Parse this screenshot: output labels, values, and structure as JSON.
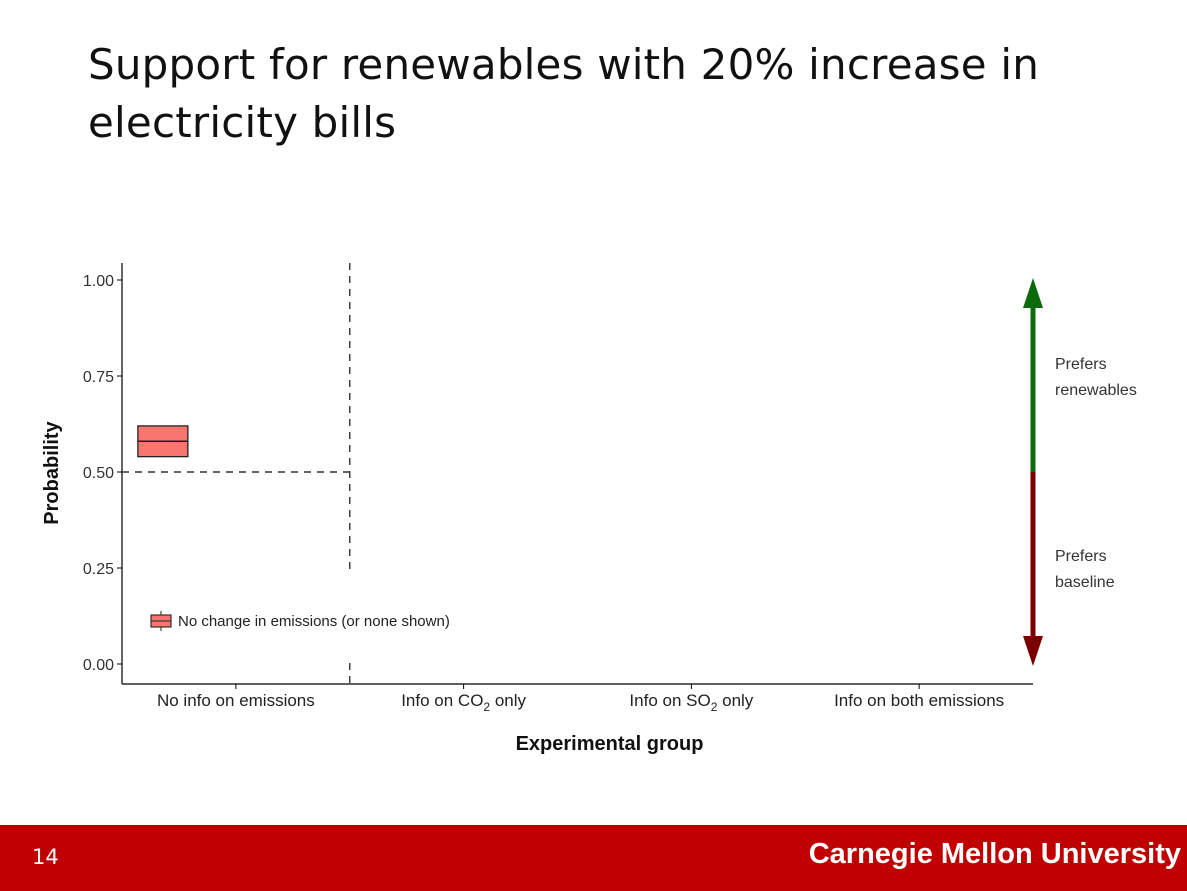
{
  "slide": {
    "title": "Support for renewables with 20% increase in electricity bills",
    "page_number": "14",
    "university": "Carnegie Mellon University"
  },
  "chart_data": {
    "type": "box",
    "title": "",
    "xlabel": "Experimental group",
    "ylabel": "Probability",
    "ylim": [
      0,
      1
    ],
    "yticks": [
      {
        "value": 0.0,
        "label": "0.00"
      },
      {
        "value": 0.25,
        "label": "0.25"
      },
      {
        "value": 0.5,
        "label": "0.50"
      },
      {
        "value": 0.75,
        "label": "0.75"
      },
      {
        "value": 1.0,
        "label": "1.00"
      }
    ],
    "categories": [
      {
        "pre": "No info on emissions",
        "sub": "",
        "post": ""
      },
      {
        "pre": "Info on CO",
        "sub": "2",
        "post": " only"
      },
      {
        "pre": "Info on SO",
        "sub": "2",
        "post": " only"
      },
      {
        "pre": "Info on both emissions",
        "sub": "",
        "post": ""
      }
    ],
    "series": [
      {
        "name": "No change in emissions (or none shown)",
        "color": "#f8766d",
        "boxes": [
          {
            "category_index": 0,
            "lower": 0.54,
            "median": 0.58,
            "upper": 0.62
          }
        ]
      }
    ],
    "reference_line_y": 0.5,
    "divider_after_category": 0,
    "legend_position": "bottom-left",
    "grid": false,
    "annotations": {
      "arrow_up": {
        "label_lines": [
          "Prefers",
          "renewables"
        ],
        "color": "#0b6b0b",
        "from": 0.5,
        "to": 1.0
      },
      "arrow_down": {
        "label_lines": [
          "Prefers",
          "baseline"
        ],
        "color": "#7a0000",
        "from": 0.5,
        "to": 0.0
      }
    }
  }
}
